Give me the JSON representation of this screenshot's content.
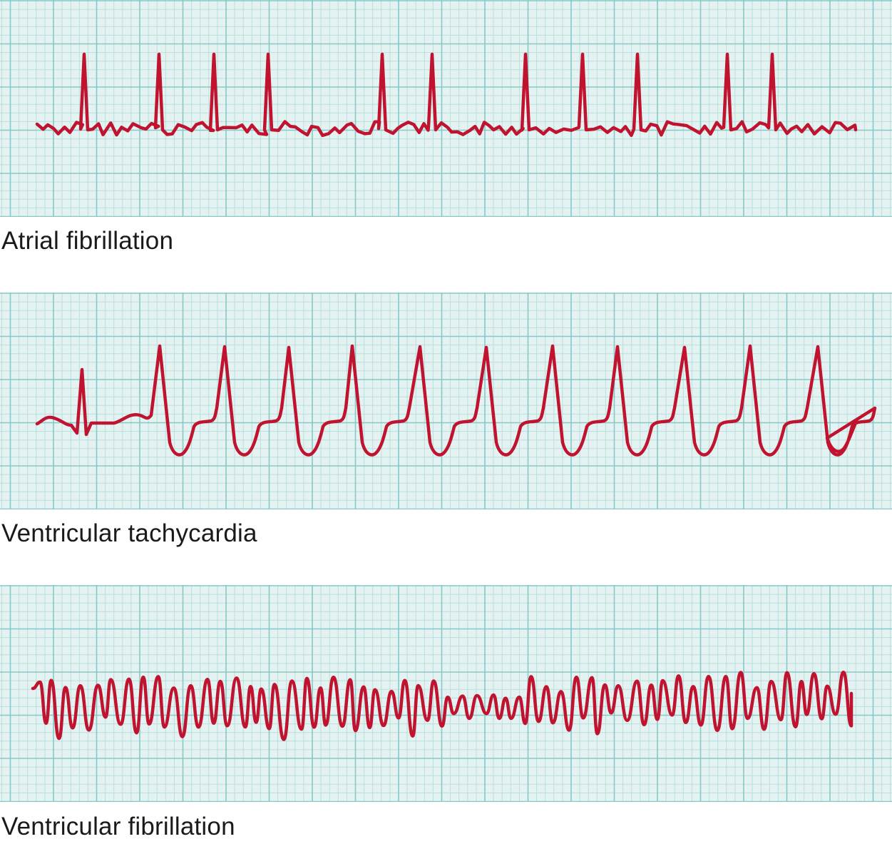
{
  "colors": {
    "paper": "#e4f3f2",
    "grid_minor": "#b9dfdd",
    "grid_major": "#86c9c7",
    "trace": "#c0132f",
    "caption_text": "#1a1a1a"
  },
  "strips": [
    {
      "caption": "Atrial fibrillation",
      "rhythm": "atrial-fibrillation"
    },
    {
      "caption": "Ventricular tachycardia",
      "rhythm": "ventricular-tachycardia"
    },
    {
      "caption": "Ventricular fibrillation",
      "rhythm": "ventricular-fibrillation"
    }
  ]
}
